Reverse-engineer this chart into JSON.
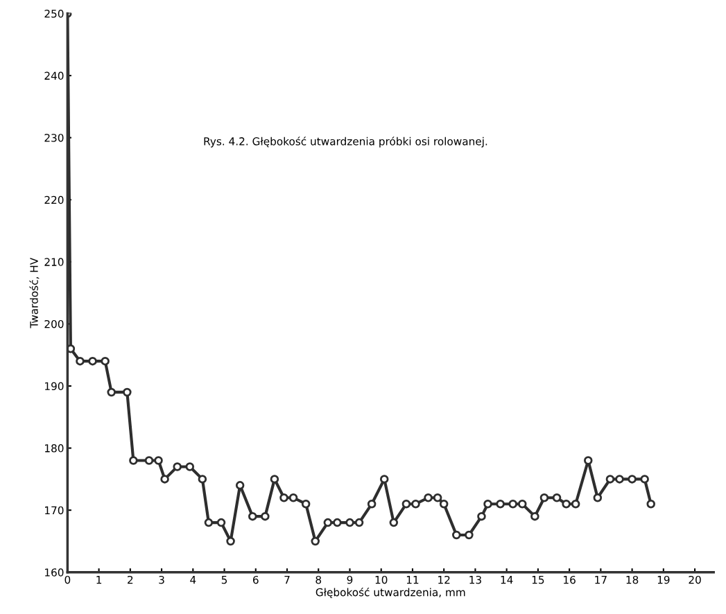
{
  "chart_data": {
    "type": "line",
    "title": "Rys. 4.2. Głębokość utwardzenia próbki osi rolowanej.",
    "xlabel": "Głębokość utwardzenia, mm",
    "ylabel": "Twardość, HV",
    "x": [
      0,
      0.1,
      0.4,
      0.8,
      1.2,
      1.4,
      1.9,
      2.1,
      2.6,
      2.9,
      3.1,
      3.5,
      3.9,
      4.3,
      4.5,
      4.9,
      5.2,
      5.5,
      5.9,
      6.3,
      6.6,
      6.9,
      7.2,
      7.6,
      7.9,
      8.3,
      8.6,
      9.0,
      9.3,
      9.7,
      10.1,
      10.4,
      10.8,
      11.1,
      11.5,
      11.8,
      12.0,
      12.4,
      12.8,
      13.2,
      13.4,
      13.8,
      14.2,
      14.5,
      14.9,
      15.2,
      15.6,
      15.9,
      16.2,
      16.6,
      16.9,
      17.3,
      17.6,
      18.0,
      18.4,
      18.6
    ],
    "series": [
      {
        "color": "#2e2e2e",
        "values": [
          250,
          196,
          194,
          194,
          194,
          189,
          189,
          178,
          178,
          178,
          175,
          177,
          177,
          175,
          168,
          168,
          165,
          174,
          169,
          169,
          175,
          172,
          172,
          171,
          165,
          168,
          168,
          168,
          168,
          171,
          175,
          168,
          171,
          171,
          172,
          172,
          171,
          166,
          166,
          169,
          171,
          171,
          171,
          171,
          169,
          172,
          172,
          171,
          171,
          178,
          172,
          175,
          175,
          175,
          175,
          171
        ]
      }
    ],
    "xlim": [
      0,
      20.6
    ],
    "ylim": [
      160,
      250
    ],
    "xticks": [
      0,
      1,
      2,
      3,
      4,
      5,
      6,
      7,
      8,
      9,
      10,
      11,
      12,
      13,
      14,
      15,
      16,
      17,
      18,
      19,
      20
    ],
    "yticks": [
      160,
      170,
      180,
      190,
      200,
      210,
      220,
      230,
      240,
      250
    ],
    "grid": false,
    "legend": false,
    "marker": "circle",
    "line_style": "solid"
  }
}
